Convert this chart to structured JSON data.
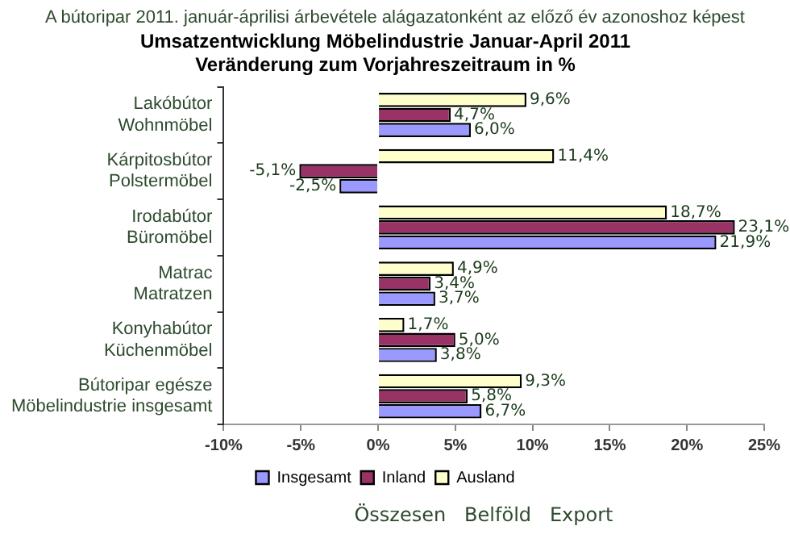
{
  "chart_data": {
    "type": "bar",
    "orientation": "horizontal",
    "title": "Umsatzentwicklung Möbelindustrie Januar-April 2011\nVeränderung zum Vorjahreszeitraum in %",
    "annotations": [
      "A bútoripar 2011. január-áprilisi árbevétele alágazatonként az előző év azonoshoz képest",
      "Összesen   Belföld   Export"
    ],
    "categories": [
      "Lakóbútor\nWohnmöbel",
      "Kárpitosbútor\nPolstermöbel",
      "Irodabútor\nBüromöbel",
      "Matrac\nMatratzen",
      "Konyhabútor\nKüchenmöbel",
      "Bútoripar egésze\nMöbelindustrie insgesamt"
    ],
    "series": [
      {
        "name": "Ausland",
        "color": "#ffffcc",
        "values": [
          9.6,
          11.4,
          18.7,
          4.9,
          1.7,
          9.3
        ],
        "value_labels": [
          "9,6%",
          "11,4%",
          "18,7%",
          "4,9%",
          "1,7%",
          "9,3%"
        ]
      },
      {
        "name": "Inland",
        "color": "#993366",
        "values": [
          4.7,
          -5.1,
          23.1,
          3.4,
          5.0,
          5.8
        ],
        "value_labels": [
          "4,7%",
          "-5,1%",
          "23,1%",
          "3,4%",
          "5,0%",
          "5,8%"
        ]
      },
      {
        "name": "Insgesamt",
        "color": "#9999ff",
        "values": [
          6.0,
          -2.5,
          21.9,
          3.7,
          3.8,
          6.7
        ],
        "value_labels": [
          "6,0%",
          "-2,5%",
          "21,9%",
          "3,7%",
          "3,8%",
          "6,7%"
        ]
      }
    ],
    "xlim": [
      -10,
      25
    ],
    "xticks": [
      {
        "value": -10,
        "label": "-10%"
      },
      {
        "value": -5,
        "label": "-5%"
      },
      {
        "value": 0,
        "label": "0%"
      },
      {
        "value": 5,
        "label": "5%"
      },
      {
        "value": 10,
        "label": "10%"
      },
      {
        "value": 15,
        "label": "15%"
      },
      {
        "value": 20,
        "label": "20%"
      },
      {
        "value": 25,
        "label": "25%"
      }
    ],
    "grid": false,
    "legend": "bottom"
  }
}
